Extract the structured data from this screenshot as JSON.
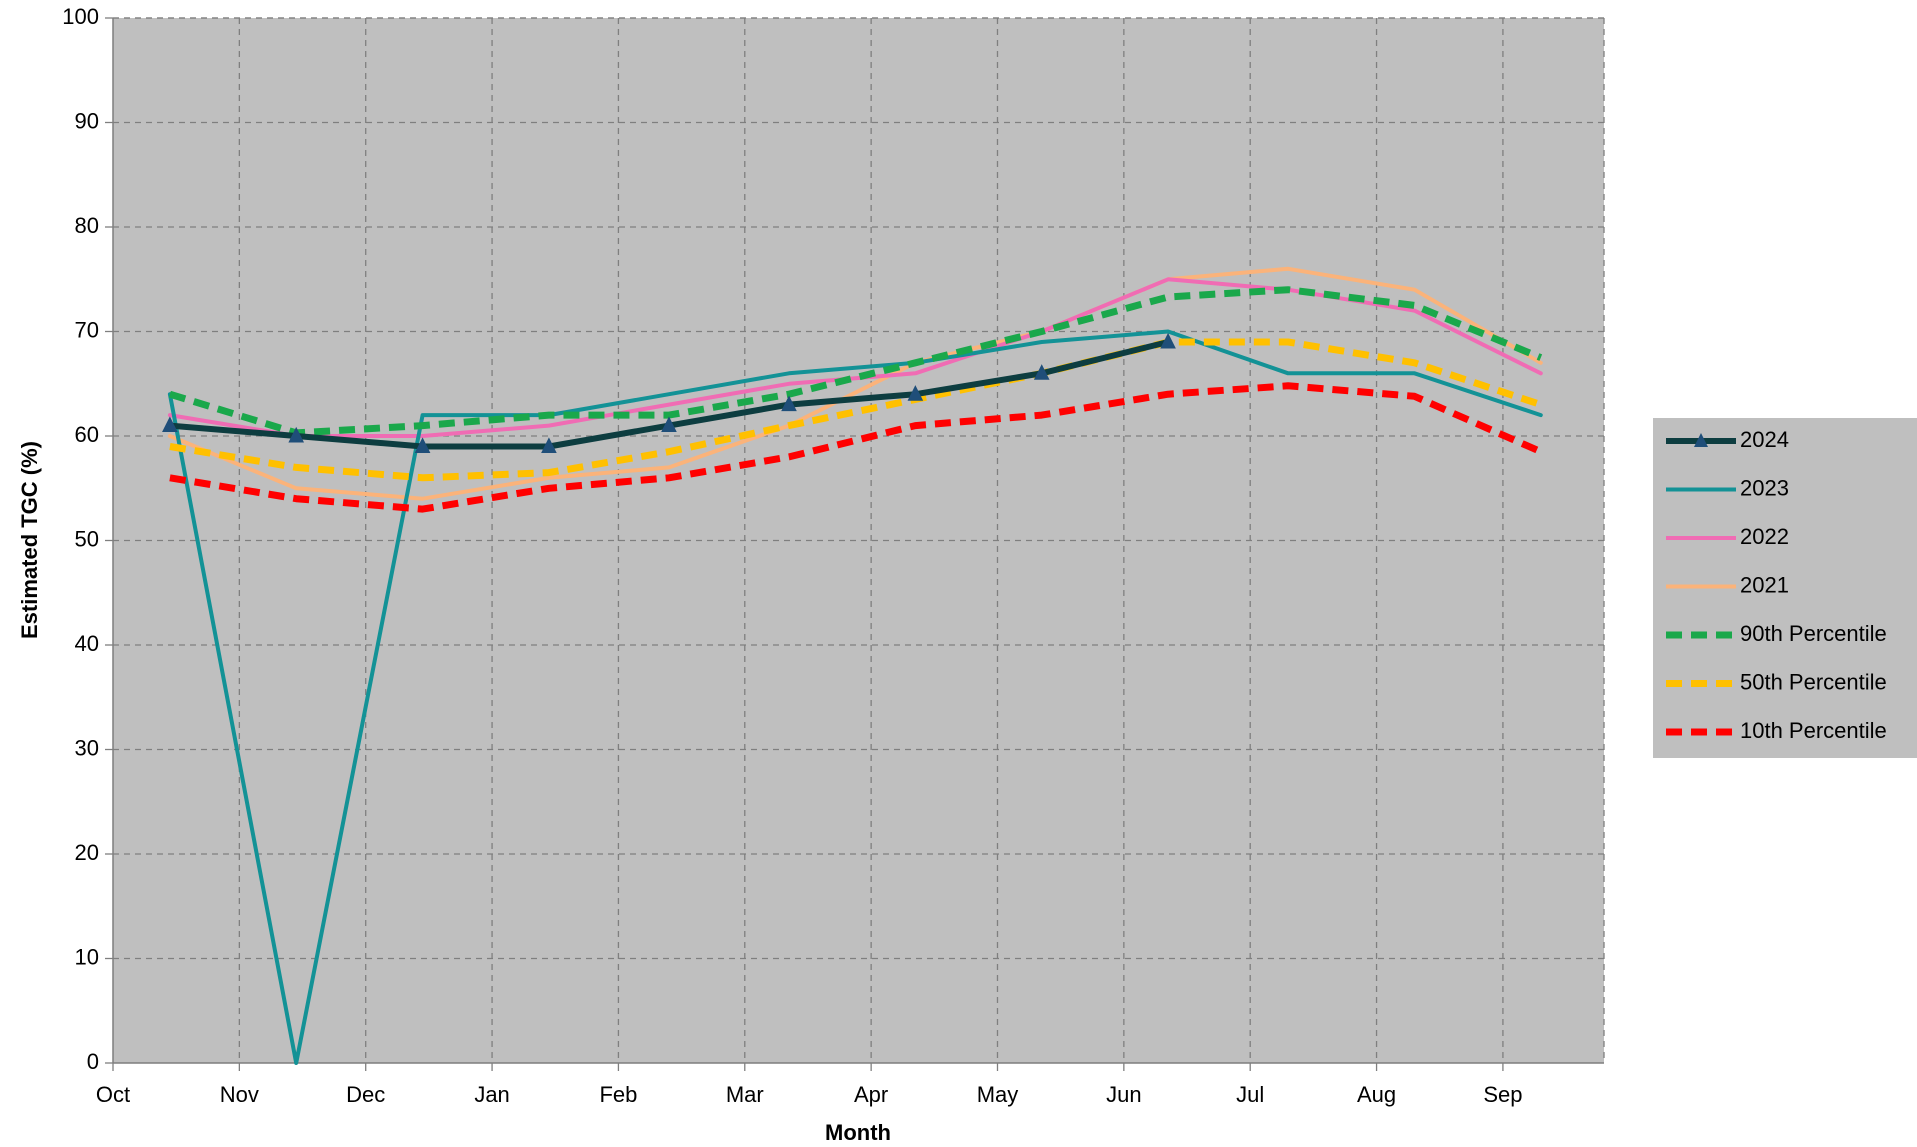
{
  "chart_data": {
    "type": "line",
    "title": "",
    "xlabel": "Month",
    "ylabel": "Estimated TGC (%)",
    "ylim": [
      0,
      100
    ],
    "yticks": [
      "0",
      "10",
      "20",
      "30",
      "40",
      "50",
      "60",
      "70",
      "80",
      "90",
      "100"
    ],
    "categories": [
      "Oct",
      "Nov",
      "Dec",
      "Jan",
      "Feb",
      "Mar",
      "Apr",
      "May",
      "Jun",
      "Jul",
      "Aug",
      "Sep"
    ],
    "x_range_months": [
      0,
      11.8
    ],
    "grid": true,
    "plot_background": "#bfbfbf",
    "legend_position": "right",
    "series": [
      {
        "name": "2024",
        "color": "#0d3d40",
        "style": "solid",
        "marker": "triangle",
        "x": [
          0.45,
          1.45,
          2.45,
          3.45,
          4.4,
          5.35,
          6.35,
          7.35,
          8.35
        ],
        "values": [
          61.0,
          60.0,
          59.0,
          59.0,
          61.0,
          63.0,
          64.0,
          66.0,
          69.0
        ]
      },
      {
        "name": "2023",
        "color": "#139296",
        "style": "solid",
        "marker": "none",
        "x": [
          0.45,
          1.45,
          2.45,
          3.45,
          4.4,
          5.35,
          6.35,
          7.35,
          8.35,
          9.3,
          10.3,
          11.3
        ],
        "values": [
          64.0,
          0.0,
          62.0,
          62.0,
          64.0,
          66.0,
          67.0,
          69.0,
          70.0,
          66.0,
          66.0,
          62.0
        ]
      },
      {
        "name": "2022",
        "color": "#f06cb4",
        "style": "solid",
        "marker": "none",
        "x": [
          0.45,
          1.45,
          2.45,
          3.45,
          4.4,
          5.35,
          6.35,
          7.35,
          8.35,
          9.3,
          10.3,
          11.3
        ],
        "values": [
          62.0,
          60.0,
          60.0,
          61.0,
          63.0,
          65.0,
          66.0,
          70.0,
          75.0,
          74.0,
          72.0,
          66.0
        ]
      },
      {
        "name": "2021",
        "color": "#fbb37a",
        "style": "solid",
        "marker": "none",
        "x": [
          0.45,
          1.45,
          2.45,
          3.45,
          4.4,
          5.35,
          6.35,
          7.35,
          8.35,
          9.3,
          10.3,
          11.3
        ],
        "values": [
          60.0,
          55.0,
          54.0,
          56.0,
          57.0,
          61.0,
          67.0,
          70.0,
          75.0,
          76.0,
          74.0,
          67.0
        ]
      },
      {
        "name": "90th Percentile",
        "color": "#1aa84b",
        "style": "dashed",
        "marker": "none",
        "x": [
          0.45,
          1.45,
          2.45,
          3.45,
          4.4,
          5.35,
          6.35,
          7.35,
          8.35,
          9.3,
          10.3,
          11.3
        ],
        "values": [
          64.0,
          60.3,
          61.0,
          62.0,
          62.0,
          64.0,
          67.0,
          70.0,
          73.3,
          74.0,
          72.5,
          67.5
        ]
      },
      {
        "name": "50th Percentile",
        "color": "#ffc000",
        "style": "dashed",
        "marker": "none",
        "x": [
          0.45,
          1.45,
          2.45,
          3.45,
          4.4,
          5.35,
          6.35,
          7.35,
          8.35,
          9.3,
          10.3,
          11.3
        ],
        "values": [
          59.0,
          57.0,
          56.0,
          56.5,
          58.5,
          61.0,
          63.5,
          66.0,
          69.0,
          69.0,
          67.0,
          63.0
        ]
      },
      {
        "name": "10th Percentile",
        "color": "#ff0000",
        "style": "dashed",
        "marker": "none",
        "x": [
          0.45,
          1.45,
          2.45,
          3.45,
          4.4,
          5.35,
          6.35,
          7.35,
          8.35,
          9.3,
          10.3,
          11.3
        ],
        "values": [
          56.0,
          54.0,
          53.0,
          55.0,
          56.0,
          58.0,
          61.0,
          62.0,
          64.0,
          64.8,
          63.8,
          58.5
        ]
      }
    ]
  }
}
